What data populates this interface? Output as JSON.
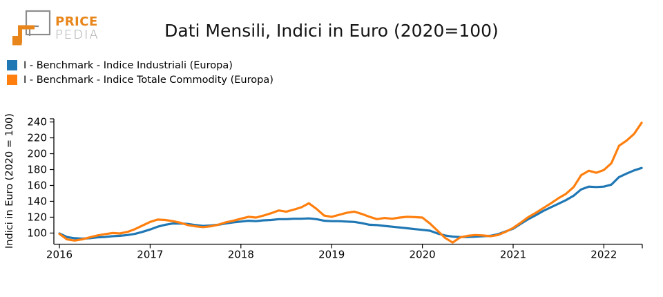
{
  "logo": {
    "price": "PRICE",
    "pedia": "PEDIA",
    "orange": "#e8861c",
    "gray": "#8c8c8c"
  },
  "header": {
    "title": "Dati Mensili, Indici in Euro (2020=100)"
  },
  "chart_data": {
    "type": "line",
    "title": "Dati Mensili, Indici in Euro (2020=100)",
    "xlabel": "",
    "ylabel": "Indici in Euro (2020 = 100)",
    "grid": false,
    "legend_position": "top-left",
    "x_tick_labels": [
      "2016",
      "2017",
      "2018",
      "2019",
      "2020",
      "2021",
      "2022"
    ],
    "y_ticks": [
      100,
      120,
      140,
      160,
      180,
      200,
      220,
      240
    ],
    "ylim": [
      86,
      244
    ],
    "x_start": "2016-01",
    "x_end": "2022-06",
    "x": [
      "2016-01",
      "2016-02",
      "2016-03",
      "2016-04",
      "2016-05",
      "2016-06",
      "2016-07",
      "2016-08",
      "2016-09",
      "2016-10",
      "2016-11",
      "2016-12",
      "2017-01",
      "2017-02",
      "2017-03",
      "2017-04",
      "2017-05",
      "2017-06",
      "2017-07",
      "2017-08",
      "2017-09",
      "2017-10",
      "2017-11",
      "2017-12",
      "2018-01",
      "2018-02",
      "2018-03",
      "2018-04",
      "2018-05",
      "2018-06",
      "2018-07",
      "2018-08",
      "2018-09",
      "2018-10",
      "2018-11",
      "2018-12",
      "2019-01",
      "2019-02",
      "2019-03",
      "2019-04",
      "2019-05",
      "2019-06",
      "2019-07",
      "2019-08",
      "2019-09",
      "2019-10",
      "2019-11",
      "2019-12",
      "2020-01",
      "2020-02",
      "2020-03",
      "2020-04",
      "2020-05",
      "2020-06",
      "2020-07",
      "2020-08",
      "2020-09",
      "2020-10",
      "2020-11",
      "2020-12",
      "2021-01",
      "2021-02",
      "2021-03",
      "2021-04",
      "2021-05",
      "2021-06",
      "2021-07",
      "2021-08",
      "2021-09",
      "2021-10",
      "2021-11",
      "2021-12",
      "2022-01",
      "2022-02",
      "2022-03",
      "2022-04",
      "2022-05",
      "2022-06"
    ],
    "series": [
      {
        "name": "I - Benchmark - Indice Industriali (Europa)",
        "color": "#1f77b4",
        "values": [
          99.5,
          95,
          93.5,
          93,
          93.5,
          94.5,
          95,
          96,
          96.5,
          97.5,
          99,
          101.5,
          104.5,
          108,
          110.5,
          112,
          112,
          111.5,
          110,
          109,
          109.5,
          110.5,
          112,
          113.5,
          114.5,
          115.5,
          115,
          116,
          116.5,
          117.5,
          117.5,
          118,
          118,
          118.5,
          117.5,
          115.5,
          115,
          115,
          114.5,
          114,
          112.5,
          110.5,
          110,
          109,
          108,
          107,
          106,
          105,
          104,
          103,
          99.5,
          97,
          95.5,
          95,
          95,
          95.5,
          96,
          96.5,
          98.5,
          102,
          105.5,
          111.5,
          117.5,
          122.5,
          128,
          132.5,
          137,
          141.5,
          147,
          155,
          158.5,
          158,
          158.5,
          161,
          170.5,
          175,
          179,
          182
        ]
      },
      {
        "name": "I - Benchmark - Indice Totale Commodity (Europa)",
        "color": "#ff7f0e",
        "values": [
          99,
          92,
          90.5,
          92,
          94.5,
          97,
          98.5,
          100,
          99.5,
          101.5,
          105,
          109.5,
          114,
          117,
          116.5,
          115,
          113,
          110,
          108.5,
          107.5,
          108.5,
          110.5,
          113.5,
          115.5,
          118,
          120.5,
          119.5,
          122,
          125,
          128.5,
          127,
          129.5,
          132.5,
          137.5,
          130.5,
          122,
          120.5,
          123,
          125.5,
          127,
          124,
          120.5,
          117.5,
          119,
          118,
          119.5,
          120.5,
          120,
          119.5,
          112,
          103,
          94,
          88,
          94.5,
          96.5,
          97.5,
          97,
          96,
          97.5,
          101.5,
          106.5,
          113,
          120,
          125.5,
          131.5,
          137.5,
          144,
          149.5,
          158,
          173,
          178.5,
          176,
          179.5,
          188,
          210,
          216.5,
          225,
          239
        ]
      }
    ]
  }
}
